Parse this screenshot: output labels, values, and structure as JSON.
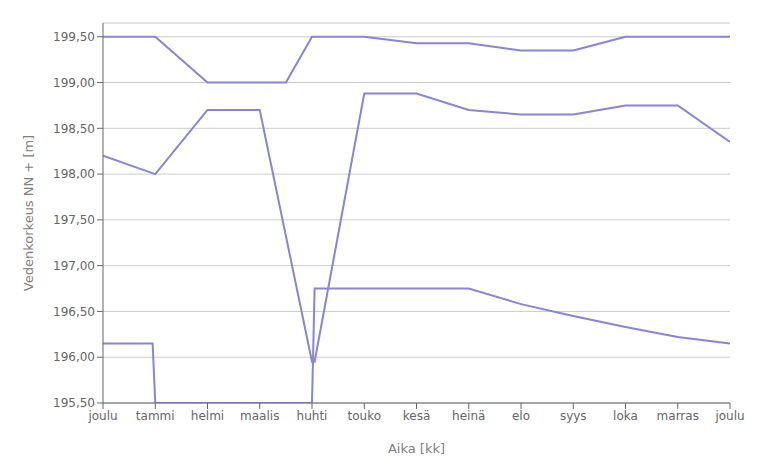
{
  "chart_data": {
    "type": "line",
    "xlabel": "Aika [kk]",
    "ylabel": "Vedenkorkeus NN + [m]",
    "xlim": [
      0,
      12
    ],
    "xticks": [
      {
        "value": 0,
        "label": "joulu"
      },
      {
        "value": 1,
        "label": "tammi"
      },
      {
        "value": 2,
        "label": "helmi"
      },
      {
        "value": 3,
        "label": "maalis"
      },
      {
        "value": 4,
        "label": "huhti"
      },
      {
        "value": 5,
        "label": "touko"
      },
      {
        "value": 6,
        "label": "kesä"
      },
      {
        "value": 7,
        "label": "heinä"
      },
      {
        "value": 8,
        "label": "elo"
      },
      {
        "value": 9,
        "label": "syys"
      },
      {
        "value": 10,
        "label": "loka"
      },
      {
        "value": 11,
        "label": "marras"
      },
      {
        "value": 12,
        "label": "joulu"
      }
    ],
    "ylim": [
      195.5,
      199.65
    ],
    "yticks": [
      {
        "value": 195.5,
        "label": "195,50"
      },
      {
        "value": 196.0,
        "label": "196,00"
      },
      {
        "value": 196.5,
        "label": "196,50"
      },
      {
        "value": 197.0,
        "label": "197,00"
      },
      {
        "value": 197.5,
        "label": "197,50"
      },
      {
        "value": 198.0,
        "label": "198,00"
      },
      {
        "value": 198.5,
        "label": "198,50"
      },
      {
        "value": 199.0,
        "label": "199,00"
      },
      {
        "value": 199.5,
        "label": "199,50"
      }
    ],
    "grid": "y",
    "series": [
      {
        "x": [
          0,
          1,
          2,
          3,
          3.5,
          4,
          5,
          6,
          7,
          8,
          9,
          10,
          11,
          12
        ],
        "values": [
          199.5,
          199.5,
          199.0,
          199.0,
          199.0,
          199.5,
          199.5,
          199.43,
          199.43,
          199.35,
          199.35,
          199.5,
          199.5,
          199.5
        ]
      },
      {
        "x": [
          0,
          1,
          2,
          3,
          4,
          4.05,
          5,
          6,
          7,
          8,
          9,
          10,
          11,
          12
        ],
        "values": [
          198.2,
          198.0,
          198.7,
          198.7,
          195.95,
          195.95,
          198.88,
          198.88,
          198.7,
          198.65,
          198.65,
          198.75,
          198.75,
          198.35
        ]
      },
      {
        "x": [
          0,
          0.95,
          1.0,
          4.0,
          4.05,
          5,
          6,
          7,
          8,
          9,
          10,
          11,
          12
        ],
        "values": [
          196.15,
          196.15,
          195.5,
          195.5,
          196.75,
          196.75,
          196.75,
          196.75,
          196.58,
          196.45,
          196.33,
          196.22,
          196.15
        ]
      }
    ]
  }
}
